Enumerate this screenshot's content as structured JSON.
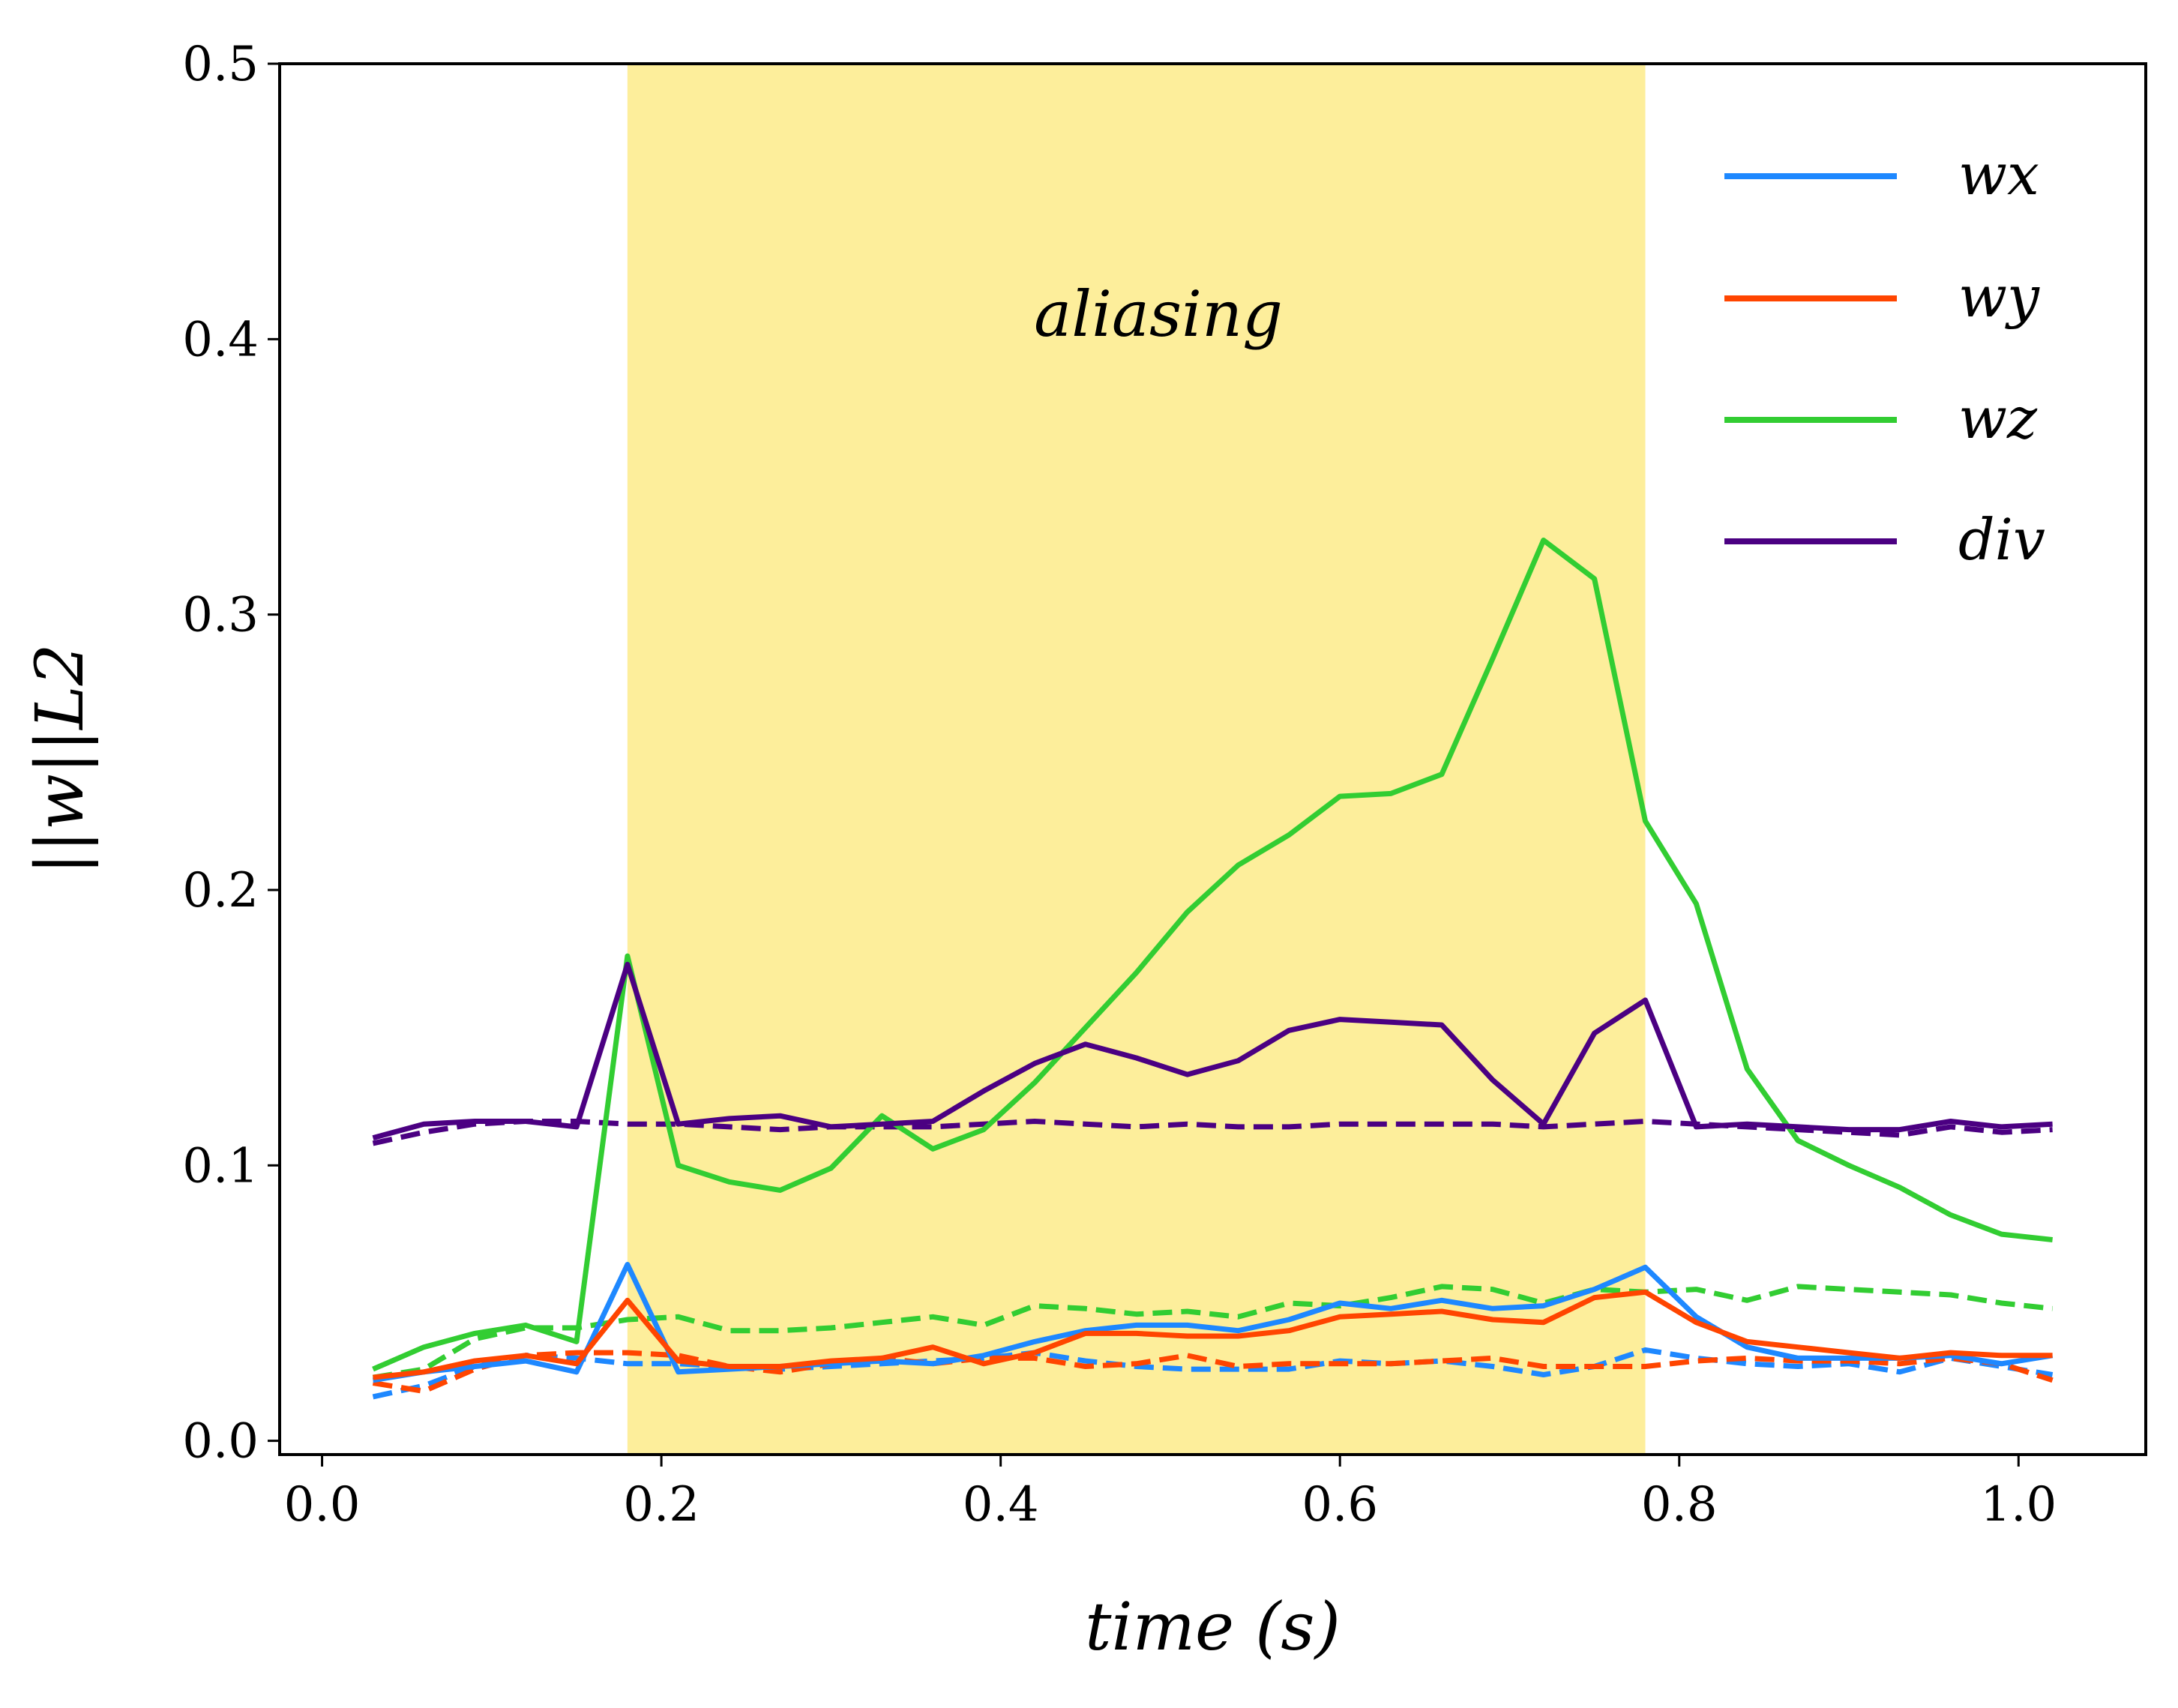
{
  "chart_data": {
    "type": "line",
    "xlabel": "time  (s)",
    "ylabel": "||w||L2",
    "xlim": [
      -0.025,
      1.075
    ],
    "ylim": [
      -0.005,
      0.5
    ],
    "xticks": [
      "0.0",
      "0.2",
      "0.4",
      "0.6",
      "0.8",
      "1.0"
    ],
    "yticks": [
      "0.0",
      "0.1",
      "0.2",
      "0.3",
      "0.4",
      "0.5"
    ],
    "shaded_region": {
      "x_start": 0.18,
      "x_end": 0.78,
      "color": "#fdee9b",
      "label": "aliasing"
    },
    "legend_position": "top-right",
    "colors": {
      "wx": "#1e88ff",
      "wy": "#ff4500",
      "wz": "#32cd32",
      "div": "#4b0082"
    },
    "x": [
      0.03,
      0.06,
      0.09,
      0.12,
      0.15,
      0.18,
      0.21,
      0.24,
      0.27,
      0.3,
      0.33,
      0.36,
      0.39,
      0.42,
      0.45,
      0.48,
      0.51,
      0.54,
      0.57,
      0.6,
      0.63,
      0.66,
      0.69,
      0.72,
      0.75,
      0.78,
      0.81,
      0.84,
      0.87,
      0.9,
      0.93,
      0.96,
      0.99,
      1.02
    ],
    "series": [
      {
        "name": "wx",
        "key": "wx",
        "style": "solid",
        "values": [
          0.022,
          0.025,
          0.027,
          0.029,
          0.025,
          0.064,
          0.025,
          0.026,
          0.027,
          0.028,
          0.029,
          0.028,
          0.031,
          0.036,
          0.04,
          0.042,
          0.042,
          0.04,
          0.044,
          0.05,
          0.048,
          0.051,
          0.048,
          0.049,
          0.055,
          0.063,
          0.045,
          0.034,
          0.03,
          0.03,
          0.03,
          0.031,
          0.028,
          0.031
        ]
      },
      {
        "name": "wy",
        "key": "wy",
        "style": "solid",
        "values": [
          0.023,
          0.025,
          0.029,
          0.031,
          0.028,
          0.051,
          0.029,
          0.027,
          0.027,
          0.029,
          0.03,
          0.034,
          0.028,
          0.032,
          0.039,
          0.039,
          0.038,
          0.038,
          0.04,
          0.045,
          0.046,
          0.047,
          0.044,
          0.043,
          0.052,
          0.054,
          0.043,
          0.036,
          0.034,
          0.032,
          0.03,
          0.032,
          0.031,
          0.031
        ]
      },
      {
        "name": "wz",
        "key": "wz",
        "style": "solid",
        "values": [
          0.026,
          0.034,
          0.039,
          0.042,
          0.036,
          0.176,
          0.1,
          0.094,
          0.091,
          0.099,
          0.118,
          0.106,
          0.113,
          0.13,
          0.15,
          0.17,
          0.192,
          0.209,
          0.22,
          0.234,
          0.235,
          0.242,
          0.284,
          0.327,
          0.313,
          0.225,
          0.195,
          0.135,
          0.109,
          0.1,
          0.092,
          0.082,
          0.075,
          0.073
        ]
      },
      {
        "name": "div",
        "key": "div",
        "style": "solid",
        "values": [
          0.11,
          0.115,
          0.116,
          0.116,
          0.114,
          0.173,
          0.115,
          0.117,
          0.118,
          0.114,
          0.115,
          0.116,
          0.127,
          0.137,
          0.144,
          0.139,
          0.133,
          0.138,
          0.149,
          0.153,
          0.152,
          0.151,
          0.131,
          0.115,
          0.148,
          0.16,
          0.114,
          0.115,
          0.114,
          0.113,
          0.113,
          0.116,
          0.114,
          0.115
        ]
      },
      {
        "key": "wx",
        "style": "dashed",
        "values": [
          0.016,
          0.02,
          0.027,
          0.031,
          0.03,
          0.028,
          0.028,
          0.027,
          0.026,
          0.027,
          0.028,
          0.029,
          0.03,
          0.032,
          0.029,
          0.027,
          0.026,
          0.026,
          0.026,
          0.029,
          0.028,
          0.029,
          0.027,
          0.024,
          0.027,
          0.033,
          0.03,
          0.028,
          0.027,
          0.028,
          0.025,
          0.03,
          0.027,
          0.024
        ]
      },
      {
        "key": "wy",
        "style": "dashed",
        "values": [
          0.021,
          0.018,
          0.026,
          0.031,
          0.032,
          0.032,
          0.031,
          0.027,
          0.025,
          0.028,
          0.03,
          0.028,
          0.03,
          0.03,
          0.027,
          0.028,
          0.031,
          0.027,
          0.028,
          0.028,
          0.028,
          0.029,
          0.03,
          0.027,
          0.027,
          0.027,
          0.029,
          0.03,
          0.029,
          0.029,
          0.028,
          0.03,
          0.028,
          0.022
        ]
      },
      {
        "key": "wz",
        "style": "dashed",
        "values": [
          0.023,
          0.026,
          0.037,
          0.041,
          0.041,
          0.044,
          0.045,
          0.04,
          0.04,
          0.041,
          0.043,
          0.045,
          0.042,
          0.049,
          0.048,
          0.046,
          0.047,
          0.045,
          0.05,
          0.049,
          0.052,
          0.056,
          0.055,
          0.05,
          0.055,
          0.054,
          0.055,
          0.051,
          0.056,
          0.055,
          0.054,
          0.053,
          0.05,
          0.048
        ]
      },
      {
        "key": "div",
        "style": "dashed",
        "values": [
          0.108,
          0.112,
          0.115,
          0.116,
          0.116,
          0.115,
          0.115,
          0.114,
          0.113,
          0.114,
          0.114,
          0.114,
          0.115,
          0.116,
          0.115,
          0.114,
          0.115,
          0.114,
          0.114,
          0.115,
          0.115,
          0.115,
          0.115,
          0.114,
          0.115,
          0.116,
          0.115,
          0.114,
          0.113,
          0.112,
          0.111,
          0.114,
          0.112,
          0.113
        ]
      }
    ]
  }
}
